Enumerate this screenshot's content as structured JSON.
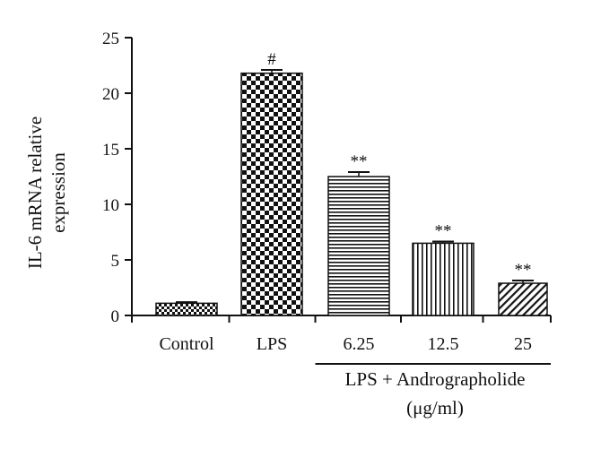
{
  "chart_data": {
    "type": "bar",
    "ylabel_lines": [
      "IL-6 mRNA relative",
      "expression"
    ],
    "xlabel": "",
    "ylim": [
      0,
      25
    ],
    "yticks": [
      0,
      5,
      10,
      15,
      20,
      25
    ],
    "grid": false,
    "categories": [
      "Control",
      "LPS",
      "6.25",
      "12.5",
      "25"
    ],
    "values": [
      1.1,
      21.8,
      12.5,
      6.5,
      2.9
    ],
    "errors": [
      0.1,
      0.3,
      0.4,
      0.15,
      0.25
    ],
    "significance": [
      "",
      "#",
      "**",
      "**",
      "**"
    ],
    "group_label": {
      "line1": "LPS + Andrographolide",
      "line2": "(μg/ml)",
      "categories": [
        "6.25",
        "12.5",
        "25"
      ]
    },
    "patterns": [
      "checker-fine",
      "checker",
      "horizontal-lines",
      "vertical-lines",
      "diagonal-lines"
    ],
    "colors": {
      "ink": "#111111",
      "background": "#ffffff"
    }
  }
}
